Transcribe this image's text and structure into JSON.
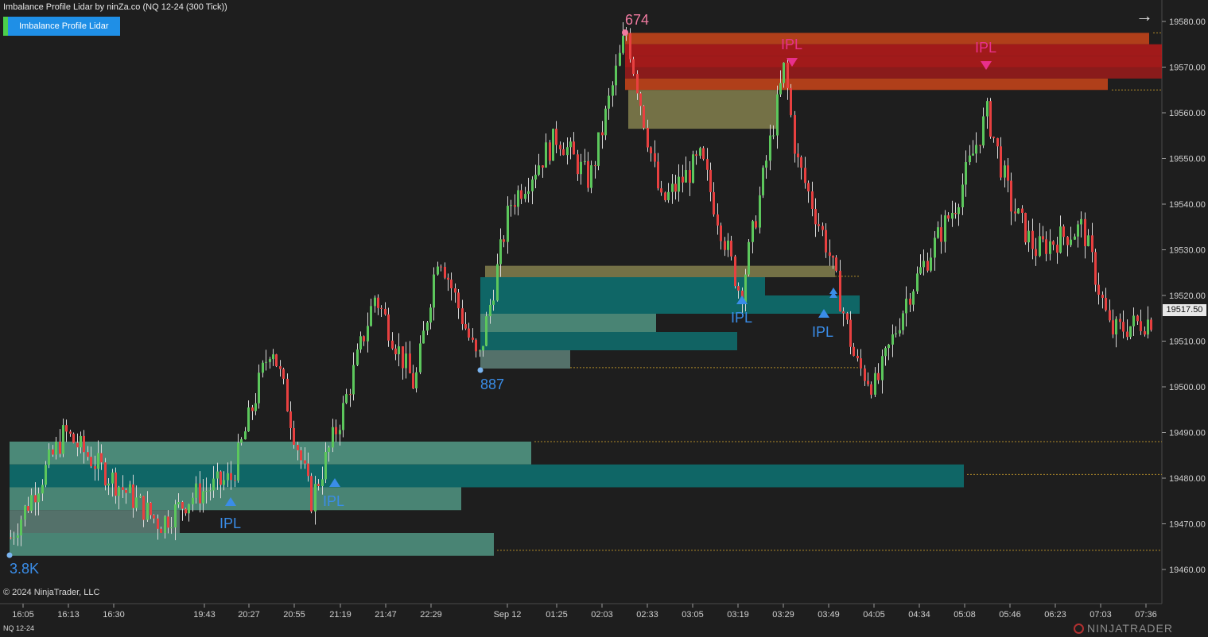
{
  "window": {
    "title": "Imbalance Profile Lidar by ninZa.co (NQ 12-24 (300 Tick))",
    "indicator_button": "Imbalance Profile Lidar",
    "copyright": "© 2024 NinjaTrader, LLC",
    "instrument": "NQ 12-24",
    "logo_text": "NINJATRADER"
  },
  "colors": {
    "background": "#1e1e1e",
    "bull": "#5cc75c",
    "bear": "#e84040",
    "zone_teal": "#0f6a6a",
    "zone_green": "#4e8f7d",
    "zone_olive": "#7d7a4a",
    "zone_red": "#b81a1a",
    "zone_orange": "#c0431a",
    "marker_blue": "#3a8de8",
    "marker_pink": "#e8308c"
  },
  "price_axis": {
    "ticks": [
      "19580.00",
      "19570.00",
      "19560.00",
      "19550.00",
      "19540.00",
      "19530.00",
      "19520.00",
      "19510.00",
      "19500.00",
      "19490.00",
      "19480.00",
      "19470.00",
      "19460.00"
    ],
    "current_price": "19517.50"
  },
  "time_axis": {
    "labels": [
      "16:05",
      "16:13",
      "16:30",
      "19:43",
      "20:27",
      "20:55",
      "21:19",
      "21:47",
      "22:29",
      "Sep 12",
      "01:25",
      "02:03",
      "02:33",
      "03:05",
      "03:19",
      "03:29",
      "03:49",
      "04:05",
      "04:34",
      "05:08",
      "05:46",
      "06:23",
      "07:03",
      "07:36"
    ]
  },
  "annotations": {
    "swing_high": "674",
    "swing_low_1": "887",
    "swing_low_2": "3.8K",
    "ipl": "IPL"
  }
}
